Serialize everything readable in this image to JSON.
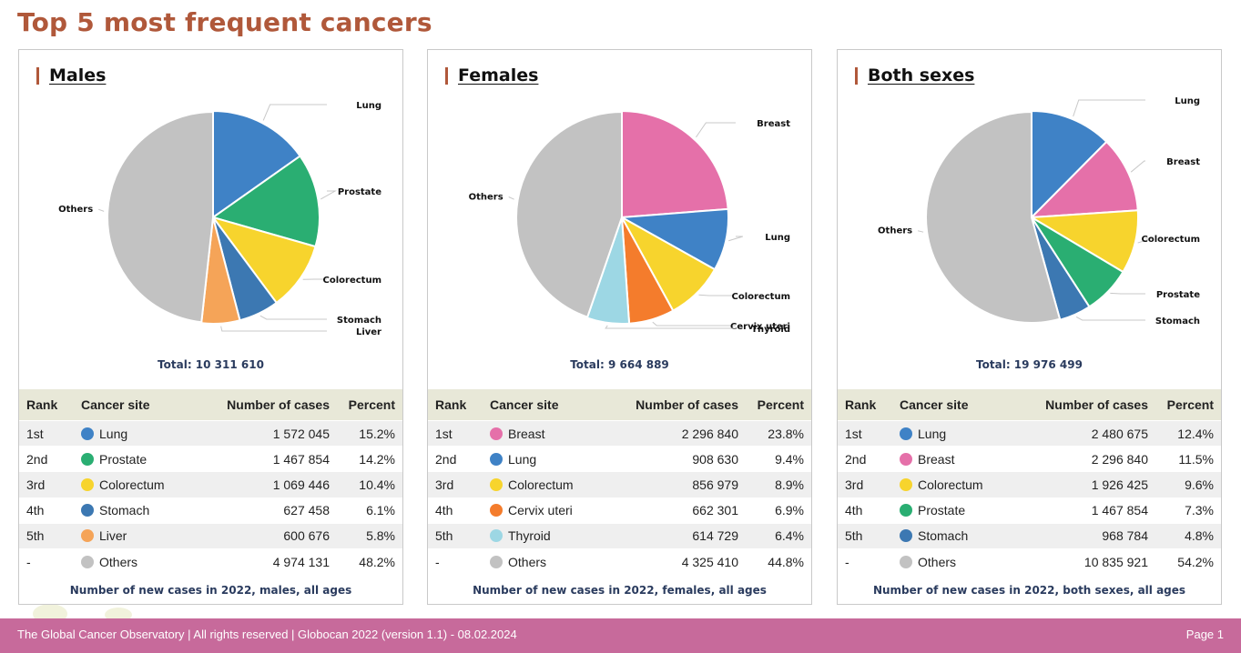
{
  "page_title": "Top 5 most frequent cancers",
  "footer": {
    "left": "The Global Cancer Observatory | All rights reserved | Globocan 2022 (version 1.1) - 08.02.2024",
    "right": "Page 1"
  },
  "table_headers": {
    "rank": "Rank",
    "site": "Cancer site",
    "cases": "Number of cases",
    "percent": "Percent"
  },
  "colors": {
    "Lung": "#3f82c6",
    "Prostate": "#2aae72",
    "Colorectum": "#f7d42d",
    "Stomach": "#3c78b2",
    "Liver": "#f5a458",
    "Others": "#c2c2c2",
    "Breast": "#e570a9",
    "Cervix uteri": "#f47c2c",
    "Thyroid": "#9dd7e4"
  },
  "chart_data": [
    {
      "type": "pie",
      "title": "Males",
      "total_label": "Total: 10 311 610",
      "caption": "Number of new cases in 2022, males, all ages",
      "slices": [
        {
          "rank": "1st",
          "label": "Lung",
          "cases": "1 572 045",
          "percent_label": "15.2%",
          "value": 15.2,
          "chart_label": "Lung"
        },
        {
          "rank": "2nd",
          "label": "Prostate",
          "cases": "1 467 854",
          "percent_label": "14.2%",
          "value": 14.2,
          "chart_label": "Prostate"
        },
        {
          "rank": "3rd",
          "label": "Colorectum",
          "cases": "1 069 446",
          "percent_label": "10.4%",
          "value": 10.4,
          "chart_label": "Colorectum"
        },
        {
          "rank": "4th",
          "label": "Stomach",
          "cases": "627 458",
          "percent_label": "6.1%",
          "value": 6.1,
          "chart_label": "Stomach"
        },
        {
          "rank": "5th",
          "label": "Liver",
          "cases": "600 676",
          "percent_label": "5.8%",
          "value": 5.8,
          "chart_label": "Liver"
        },
        {
          "rank": "-",
          "label": "Others",
          "cases": "4 974 131",
          "percent_label": "48.2%",
          "value": 48.2,
          "chart_label": "Others"
        }
      ]
    },
    {
      "type": "pie",
      "title": "Females",
      "total_label": "Total: 9 664 889",
      "caption": "Number of new cases in 2022, females, all ages",
      "slices": [
        {
          "rank": "1st",
          "label": "Breast",
          "cases": "2 296 840",
          "percent_label": "23.8%",
          "value": 23.8,
          "chart_label": "Breast"
        },
        {
          "rank": "2nd",
          "label": "Lung",
          "cases": "908 630",
          "percent_label": "9.4%",
          "value": 9.4,
          "chart_label": "Lung"
        },
        {
          "rank": "3rd",
          "label": "Colorectum",
          "cases": "856 979",
          "percent_label": "8.9%",
          "value": 8.9,
          "chart_label": "Colorectum"
        },
        {
          "rank": "4th",
          "label": "Cervix uteri",
          "cases": "662 301",
          "percent_label": "6.9%",
          "value": 6.9,
          "chart_label": "Cervix uteri"
        },
        {
          "rank": "5th",
          "label": "Thyroid",
          "cases": "614 729",
          "percent_label": "6.4%",
          "value": 6.4,
          "chart_label": "Thyroid"
        },
        {
          "rank": "-",
          "label": "Others",
          "cases": "4 325 410",
          "percent_label": "44.8%",
          "value": 44.8,
          "chart_label": "Others"
        }
      ]
    },
    {
      "type": "pie",
      "title": "Both sexes",
      "total_label": "Total: 19 976 499",
      "caption": "Number of new cases in 2022, both sexes, all ages",
      "slices": [
        {
          "rank": "1st",
          "label": "Lung",
          "cases": "2 480 675",
          "percent_label": "12.4%",
          "value": 12.4,
          "chart_label": "Lung"
        },
        {
          "rank": "2nd",
          "label": "Breast",
          "cases": "2 296 840",
          "percent_label": "11.5%",
          "value": 11.5,
          "chart_label": "Breast"
        },
        {
          "rank": "3rd",
          "label": "Colorectum",
          "cases": "1 926 425",
          "percent_label": "9.6%",
          "value": 9.6,
          "chart_label": "Colorectum"
        },
        {
          "rank": "4th",
          "label": "Prostate",
          "cases": "1 467 854",
          "percent_label": "7.3%",
          "value": 7.3,
          "chart_label": "Prostate"
        },
        {
          "rank": "5th",
          "label": "Stomach",
          "cases": "968 784",
          "percent_label": "4.8%",
          "value": 4.8,
          "chart_label": "Stomach"
        },
        {
          "rank": "-",
          "label": "Others",
          "cases": "10 835 921",
          "percent_label": "54.2%",
          "value": 54.2,
          "chart_label": "Others"
        }
      ]
    }
  ]
}
